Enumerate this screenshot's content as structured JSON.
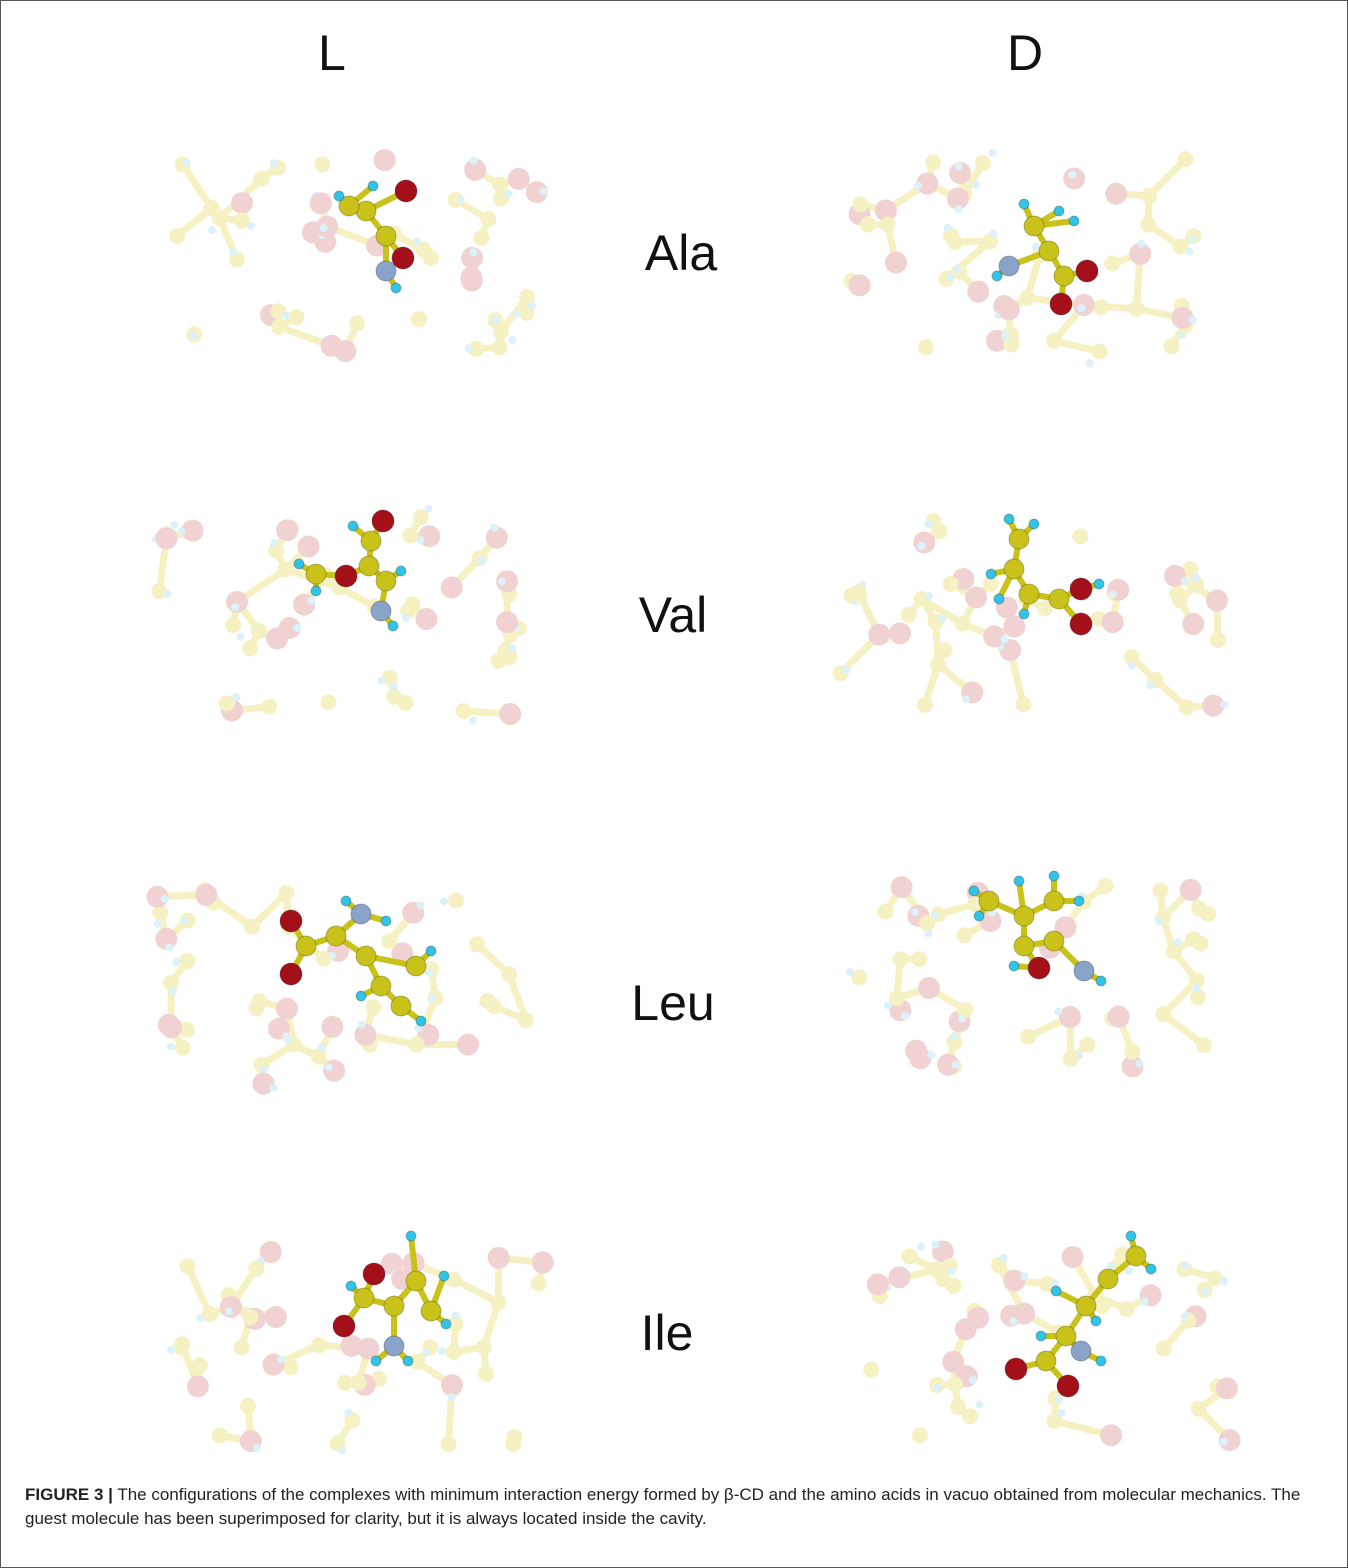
{
  "figure": {
    "columns": {
      "left": "L",
      "right": "D"
    },
    "rows": [
      {
        "label": "Ala"
      },
      {
        "label": "Val"
      },
      {
        "label": "Leu"
      },
      {
        "label": "Ile"
      }
    ],
    "caption": {
      "label": "FIGURE 3 |",
      "text": "The configurations of the complexes with minimum interaction energy formed by β-CD and the amino acids in vacuo obtained from molecular mechanics. The guest molecule has been superimposed for clarity, but it is always located inside the cavity."
    },
    "colors": {
      "carbon": "#c9c21a",
      "oxygen": "#a3101a",
      "nitrogen": "#8aa3c8",
      "hydrogen": "#31c4e6",
      "host_carbon": "#f3edb0",
      "host_oxygen": "#ebc4c4",
      "host_hydrogen": "#cfeefa"
    }
  }
}
